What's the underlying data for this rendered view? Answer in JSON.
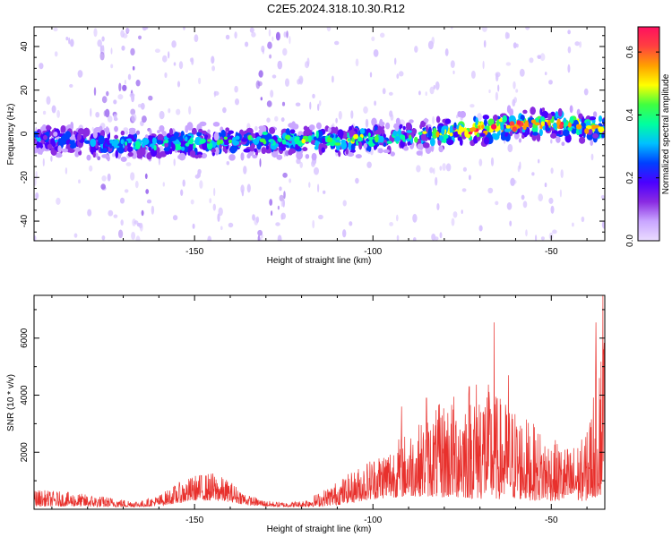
{
  "title": "C2E5.2024.318.10.30.R12",
  "chart_data": [
    {
      "type": "heatmap",
      "xlabel": "Height of straight line (km)",
      "ylabel": "Frequency (Hz)",
      "xlim": [
        -195,
        -35
      ],
      "ylim": [
        -49,
        49
      ],
      "xticks": [
        -150,
        -100,
        -50
      ],
      "yticks": [
        -40,
        -20,
        0,
        20,
        40
      ],
      "colorbar": {
        "label": "Normalized spectral amplitude",
        "range": [
          0,
          0.68
        ],
        "ticks": [
          0.0,
          0.2,
          0.4,
          0.6
        ],
        "colors": [
          "#eadcff",
          "#c9a6ff",
          "#8a2be2",
          "#4b00ff",
          "#0040ff",
          "#00c0ff",
          "#00ffa0",
          "#40ff40",
          "#ffff00",
          "#ffa000",
          "#ff4040",
          "#ff1060"
        ]
      },
      "ridge": {
        "x": [
          -195,
          -180,
          -165,
          -150,
          -130,
          -110,
          -100,
          -90,
          -80,
          -70,
          -60,
          -50,
          -45,
          -40,
          -35
        ],
        "center_freq": [
          -2,
          -4,
          -5,
          -4,
          -3,
          -3,
          -2,
          -1,
          0,
          2,
          4,
          5,
          4,
          3,
          3
        ],
        "peak_amplitude": [
          0.25,
          0.3,
          0.3,
          0.35,
          0.3,
          0.4,
          0.35,
          0.3,
          0.45,
          0.55,
          0.5,
          0.45,
          0.5,
          0.4,
          0.5
        ]
      },
      "noise_bands_x": [
        [
          -178,
          -162
        ],
        [
          -134,
          -124
        ]
      ]
    },
    {
      "type": "line",
      "xlabel": "Height of straight line (km)",
      "ylabel": "SNR (10 * v/v)",
      "xlim": [
        -195,
        -35
      ],
      "ylim": [
        0,
        7500
      ],
      "xticks": [
        -150,
        -100,
        -50
      ],
      "yticks": [
        2000,
        4000,
        6000
      ],
      "color": "#e8302c",
      "envelope": {
        "x": [
          -195,
          -185,
          -175,
          -170,
          -165,
          -160,
          -155,
          -150,
          -145,
          -140,
          -135,
          -130,
          -125,
          -120,
          -115,
          -110,
          -105,
          -100,
          -95,
          -90,
          -85,
          -80,
          -75,
          -70,
          -65,
          -60,
          -55,
          -50,
          -45,
          -40,
          -38,
          -36,
          -35
        ],
        "min": [
          100,
          100,
          80,
          80,
          80,
          120,
          200,
          300,
          300,
          250,
          150,
          100,
          80,
          80,
          100,
          150,
          250,
          350,
          400,
          450,
          450,
          400,
          400,
          350,
          350,
          350,
          300,
          300,
          250,
          300,
          400,
          500,
          600
        ],
        "max": [
          700,
          600,
          450,
          350,
          300,
          500,
          900,
          1200,
          1300,
          1000,
          500,
          300,
          250,
          300,
          600,
          1000,
          1400,
          1900,
          2300,
          2800,
          3200,
          3900,
          4200,
          4800,
          4000,
          3600,
          3000,
          2500,
          2200,
          2600,
          4500,
          6000,
          7300
        ]
      },
      "spikes": [
        {
          "x": -92,
          "y": 3600
        },
        {
          "x": -85,
          "y": 3900
        },
        {
          "x": -73,
          "y": 4300
        },
        {
          "x": -66,
          "y": 6550
        },
        {
          "x": -62,
          "y": 4700
        },
        {
          "x": -40,
          "y": 2700
        },
        {
          "x": -37.5,
          "y": 6550
        },
        {
          "x": -36.5,
          "y": 4600
        },
        {
          "x": -35.5,
          "y": 7500
        }
      ]
    }
  ]
}
